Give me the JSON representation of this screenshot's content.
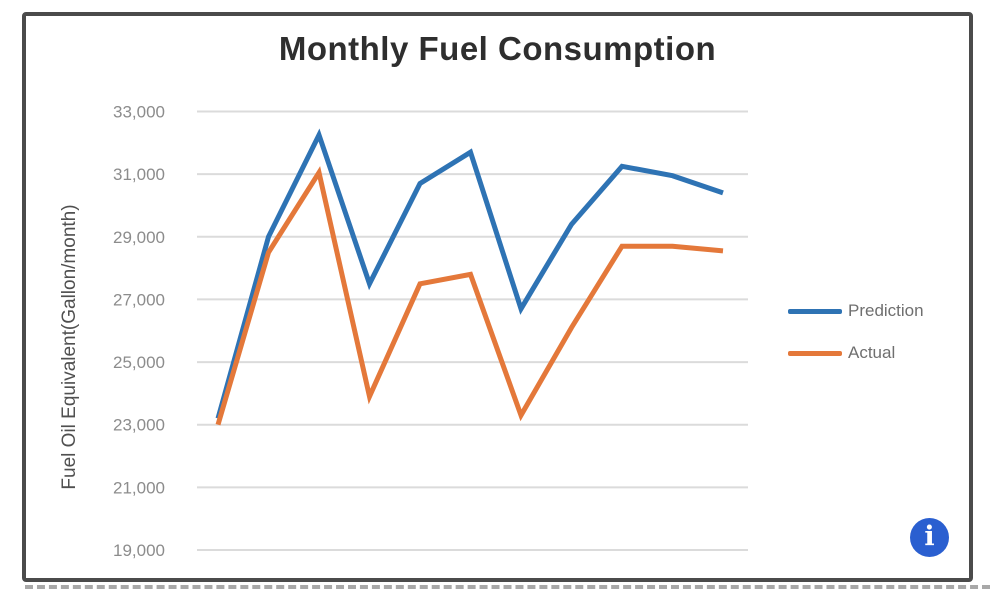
{
  "chart_data": {
    "type": "line",
    "title": "Monthly Fuel Consumption",
    "xlabel": "",
    "ylabel": "Fuel Oil Equivalent(Gallon/month)",
    "x": [
      1,
      2,
      3,
      4,
      5,
      6,
      7,
      8,
      9,
      10,
      11
    ],
    "xtick_labels": [],
    "ylim": [
      19000,
      33000
    ],
    "yticks": [
      33000,
      31000,
      29000,
      27000,
      25000,
      23000,
      21000,
      19000
    ],
    "ytick_labels": [
      "33,000",
      "31,000",
      "29,000",
      "27,000",
      "25,000",
      "23,000",
      "21,000",
      "19,000"
    ],
    "grid": "horizontal",
    "grid_color": "#dbdbdb",
    "legend_position": "right",
    "series": [
      {
        "name": "Prediction",
        "color": "#2e73b4",
        "values": [
          23200,
          29000,
          32250,
          27500,
          30700,
          31700,
          26700,
          29400,
          31250,
          30950,
          30400
        ]
      },
      {
        "name": "Actual",
        "color": "#e4783a",
        "values": [
          23000,
          28500,
          31050,
          23900,
          27500,
          27800,
          23300,
          26100,
          28700,
          28700,
          28550
        ]
      }
    ]
  },
  "info_button": {
    "glyph": "i",
    "color": "#2a5fd0"
  },
  "frame": {
    "border_color": "#4b4b4b"
  }
}
